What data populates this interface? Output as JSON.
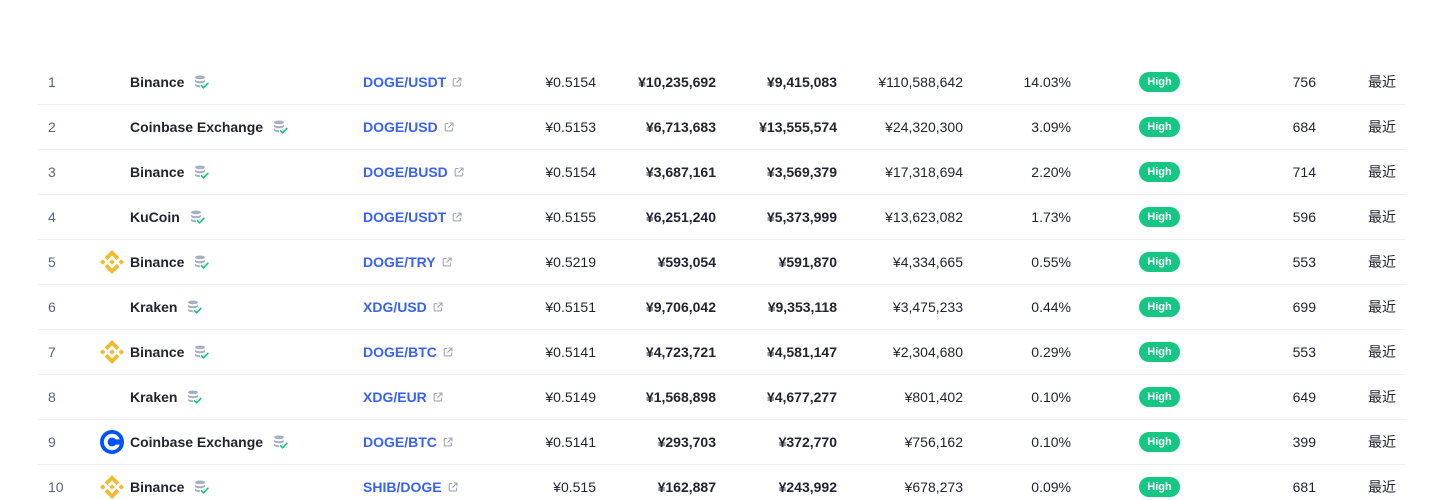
{
  "colors": {
    "text": "#222531",
    "muted": "#58667e",
    "link": "#3861fb",
    "link-icon": "#a1a7bb",
    "high": "#16c784",
    "binance": "#f3ba2f",
    "coinbase": "#0052ff",
    "db-icon": "#a6b0c3",
    "divider": "#eff2f5"
  },
  "markets": {
    "name_badge_icon": "reserves-verified-icon",
    "pair_link_icon": "external-link-icon",
    "rows": [
      {
        "rank": "1",
        "exchange": "Binance",
        "pair": "DOGE/USDT",
        "price": "¥0.5154",
        "depth_plus": "¥10,235,692",
        "depth_minus": "¥9,415,083",
        "volume": "¥110,588,642",
        "volume_share": "14.03%",
        "confidence": "High",
        "liquidity": "756",
        "updated": "最近"
      },
      {
        "rank": "2",
        "exchange": "Coinbase Exchange",
        "pair": "DOGE/USD",
        "price": "¥0.5153",
        "depth_plus": "¥6,713,683",
        "depth_minus": "¥13,555,574",
        "volume": "¥24,320,300",
        "volume_share": "3.09%",
        "confidence": "High",
        "liquidity": "684",
        "updated": "最近"
      },
      {
        "rank": "3",
        "exchange": "Binance",
        "pair": "DOGE/BUSD",
        "price": "¥0.5154",
        "depth_plus": "¥3,687,161",
        "depth_minus": "¥3,569,379",
        "volume": "¥17,318,694",
        "volume_share": "2.20%",
        "confidence": "High",
        "liquidity": "714",
        "updated": "最近"
      },
      {
        "rank": "4",
        "exchange": "KuCoin",
        "pair": "DOGE/USDT",
        "price": "¥0.5155",
        "depth_plus": "¥6,251,240",
        "depth_minus": "¥5,373,999",
        "volume": "¥13,623,082",
        "volume_share": "1.73%",
        "confidence": "High",
        "liquidity": "596",
        "updated": "最近"
      },
      {
        "rank": "5",
        "logo": "binance-logo-icon",
        "exchange": "Binance",
        "pair": "DOGE/TRY",
        "price": "¥0.5219",
        "depth_plus": "¥593,054",
        "depth_minus": "¥591,870",
        "volume": "¥4,334,665",
        "volume_share": "0.55%",
        "confidence": "High",
        "liquidity": "553",
        "updated": "最近"
      },
      {
        "rank": "6",
        "exchange": "Kraken",
        "pair": "XDG/USD",
        "price": "¥0.5151",
        "depth_plus": "¥9,706,042",
        "depth_minus": "¥9,353,118",
        "volume": "¥3,475,233",
        "volume_share": "0.44%",
        "confidence": "High",
        "liquidity": "699",
        "updated": "最近"
      },
      {
        "rank": "7",
        "logo": "binance-logo-icon",
        "exchange": "Binance",
        "pair": "DOGE/BTC",
        "price": "¥0.5141",
        "depth_plus": "¥4,723,721",
        "depth_minus": "¥4,581,147",
        "volume": "¥2,304,680",
        "volume_share": "0.29%",
        "confidence": "High",
        "liquidity": "553",
        "updated": "最近"
      },
      {
        "rank": "8",
        "exchange": "Kraken",
        "pair": "XDG/EUR",
        "price": "¥0.5149",
        "depth_plus": "¥1,568,898",
        "depth_minus": "¥4,677,277",
        "volume": "¥801,402",
        "volume_share": "0.10%",
        "confidence": "High",
        "liquidity": "649",
        "updated": "最近"
      },
      {
        "rank": "9",
        "logo": "coinbase-logo-icon",
        "exchange": "Coinbase Exchange",
        "pair": "DOGE/BTC",
        "price": "¥0.5141",
        "depth_plus": "¥293,703",
        "depth_minus": "¥372,770",
        "volume": "¥756,162",
        "volume_share": "0.10%",
        "confidence": "High",
        "liquidity": "399",
        "updated": "最近"
      },
      {
        "rank": "10",
        "logo": "binance-logo-icon",
        "exchange": "Binance",
        "pair": "SHIB/DOGE",
        "price": "¥0.515",
        "depth_plus": "¥162,887",
        "depth_minus": "¥243,992",
        "volume": "¥678,273",
        "volume_share": "0.09%",
        "confidence": "High",
        "liquidity": "681",
        "updated": "最近"
      }
    ]
  }
}
